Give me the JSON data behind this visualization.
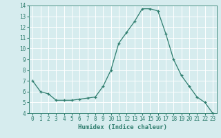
{
  "x": [
    0,
    1,
    2,
    3,
    4,
    5,
    6,
    7,
    8,
    9,
    10,
    11,
    12,
    13,
    14,
    15,
    16,
    17,
    18,
    19,
    20,
    21,
    22,
    23
  ],
  "y": [
    7.0,
    6.0,
    5.8,
    5.2,
    5.2,
    5.2,
    5.3,
    5.4,
    5.5,
    6.5,
    8.0,
    10.5,
    11.5,
    12.5,
    13.7,
    13.7,
    13.5,
    11.4,
    9.0,
    7.5,
    6.5,
    5.5,
    5.0,
    4.0
  ],
  "line_color": "#2e7d6e",
  "marker": "+",
  "xlabel": "Humidex (Indice chaleur)",
  "xlim": [
    -0.5,
    23.5
  ],
  "ylim": [
    4,
    14
  ],
  "yticks": [
    4,
    5,
    6,
    7,
    8,
    9,
    10,
    11,
    12,
    13,
    14
  ],
  "xticks": [
    0,
    1,
    2,
    3,
    4,
    5,
    6,
    7,
    8,
    9,
    10,
    11,
    12,
    13,
    14,
    15,
    16,
    17,
    18,
    19,
    20,
    21,
    22,
    23
  ],
  "bg_color": "#d6ecee",
  "grid_color": "#ffffff",
  "tick_fontsize": 5.5,
  "label_fontsize": 6.5
}
